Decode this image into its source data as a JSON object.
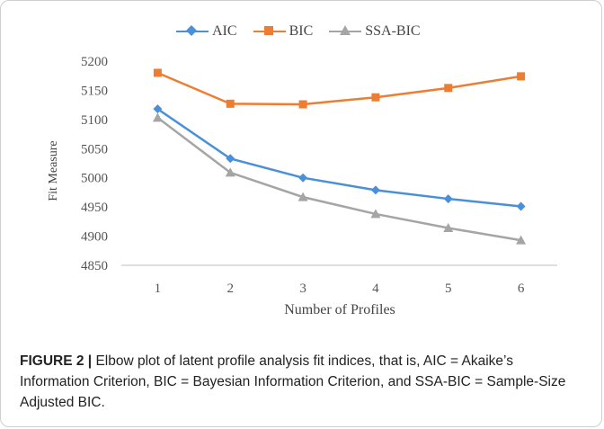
{
  "chart_data": {
    "type": "line",
    "categories": [
      "1",
      "2",
      "3",
      "4",
      "5",
      "6"
    ],
    "series": [
      {
        "name": "AIC",
        "color": "#4a90d9",
        "marker": "diamond",
        "values": [
          5118,
          5033,
          5000,
          4979,
          4964,
          4951
        ]
      },
      {
        "name": "BIC",
        "color": "#ed7d31",
        "marker": "square",
        "values": [
          5180,
          5127,
          5126,
          5138,
          5154,
          5174
        ]
      },
      {
        "name": "SSA-BIC",
        "color": "#a5a5a5",
        "marker": "triangle",
        "values": [
          5103,
          5009,
          4967,
          4938,
          4914,
          4893
        ]
      }
    ],
    "xlabel": "Number of Profiles",
    "ylabel": "Fit Measure",
    "ylim": [
      4850,
      5200
    ],
    "yticks": [
      "5200",
      "5150",
      "5100",
      "5050",
      "5000",
      "4950",
      "4900",
      "4850"
    ],
    "grid": false,
    "legend_position": "top"
  },
  "caption": {
    "label": "FIGURE 2 |",
    "text": " Elbow plot of latent profile analysis fit indices, that is, AIC = Akaike’s Information Criterion, BIC = Bayesian Information Criterion, and SSA-BIC = Sample-Size Adjusted BIC."
  }
}
